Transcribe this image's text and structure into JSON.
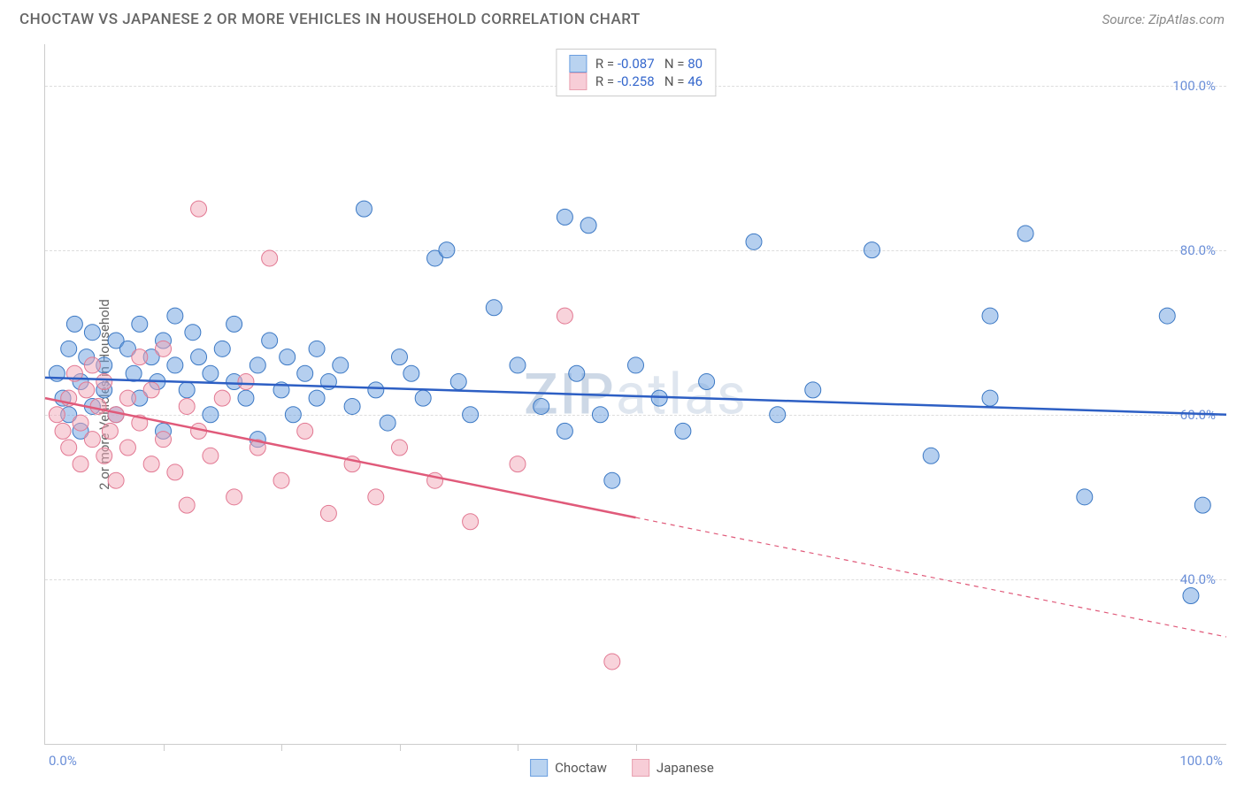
{
  "header": {
    "title": "CHOCTAW VS JAPANESE 2 OR MORE VEHICLES IN HOUSEHOLD CORRELATION CHART",
    "source": "Source: ZipAtlas.com"
  },
  "watermark": "ZIPatlas",
  "chart": {
    "type": "scatter",
    "ylabel": "2 or more Vehicles in Household",
    "xlim": [
      0,
      100
    ],
    "ylim": [
      20,
      105
    ],
    "xtick_label_left": "0.0%",
    "xtick_label_right": "100.0%",
    "xtick_positions": [
      10,
      20,
      30,
      40,
      50
    ],
    "ytick_positions": [
      40,
      60,
      80,
      100
    ],
    "ytick_labels": [
      "40.0%",
      "60.0%",
      "80.0%",
      "100.0%"
    ],
    "grid_color": "#dddddd",
    "background_color": "#ffffff",
    "marker_radius": 9,
    "marker_opacity": 0.5,
    "line_width": 2.5,
    "series": [
      {
        "name": "Choctaw",
        "color": "#6b9fe0",
        "stroke": "#3b78c4",
        "line_color": "#2d5fc4",
        "R": "-0.087",
        "N": "80",
        "regression": {
          "x1": 0,
          "y1": 64.5,
          "x2": 100,
          "y2": 60.0,
          "solid_until": 100
        },
        "points": [
          [
            1,
            65
          ],
          [
            1.5,
            62
          ],
          [
            2,
            68
          ],
          [
            2,
            60
          ],
          [
            2.5,
            71
          ],
          [
            3,
            64
          ],
          [
            3,
            58
          ],
          [
            3.5,
            67
          ],
          [
            4,
            61
          ],
          [
            4,
            70
          ],
          [
            5,
            63
          ],
          [
            5,
            66
          ],
          [
            6,
            69
          ],
          [
            6,
            60
          ],
          [
            7,
            68
          ],
          [
            7.5,
            65
          ],
          [
            8,
            71
          ],
          [
            8,
            62
          ],
          [
            9,
            67
          ],
          [
            9.5,
            64
          ],
          [
            10,
            69
          ],
          [
            10,
            58
          ],
          [
            11,
            66
          ],
          [
            11,
            72
          ],
          [
            12,
            63
          ],
          [
            12.5,
            70
          ],
          [
            13,
            67
          ],
          [
            14,
            65
          ],
          [
            14,
            60
          ],
          [
            15,
            68
          ],
          [
            16,
            64
          ],
          [
            16,
            71
          ],
          [
            17,
            62
          ],
          [
            18,
            66
          ],
          [
            18,
            57
          ],
          [
            19,
            69
          ],
          [
            20,
            63
          ],
          [
            20.5,
            67
          ],
          [
            21,
            60
          ],
          [
            22,
            65
          ],
          [
            23,
            62
          ],
          [
            23,
            68
          ],
          [
            24,
            64
          ],
          [
            25,
            66
          ],
          [
            26,
            61
          ],
          [
            27,
            85
          ],
          [
            28,
            63
          ],
          [
            29,
            59
          ],
          [
            30,
            67
          ],
          [
            31,
            65
          ],
          [
            32,
            62
          ],
          [
            33,
            79
          ],
          [
            34,
            80
          ],
          [
            35,
            64
          ],
          [
            36,
            60
          ],
          [
            38,
            73
          ],
          [
            40,
            66
          ],
          [
            42,
            61
          ],
          [
            44,
            84
          ],
          [
            44,
            58
          ],
          [
            45,
            65
          ],
          [
            46,
            83
          ],
          [
            47,
            60
          ],
          [
            48,
            52
          ],
          [
            50,
            66
          ],
          [
            52,
            62
          ],
          [
            54,
            58
          ],
          [
            56,
            64
          ],
          [
            60,
            81
          ],
          [
            62,
            60
          ],
          [
            65,
            63
          ],
          [
            70,
            80
          ],
          [
            75,
            55
          ],
          [
            80,
            72
          ],
          [
            83,
            82
          ],
          [
            88,
            50
          ],
          [
            95,
            72
          ],
          [
            97,
            38
          ],
          [
            98,
            49
          ],
          [
            80,
            62
          ]
        ]
      },
      {
        "name": "Japanese",
        "color": "#f2a8b8",
        "stroke": "#e27892",
        "line_color": "#e05a7a",
        "R": "-0.258",
        "N": "46",
        "regression": {
          "x1": 0,
          "y1": 62.0,
          "x2": 100,
          "y2": 33.0,
          "solid_until": 50
        },
        "points": [
          [
            1,
            60
          ],
          [
            1.5,
            58
          ],
          [
            2,
            62
          ],
          [
            2,
            56
          ],
          [
            2.5,
            65
          ],
          [
            3,
            59
          ],
          [
            3,
            54
          ],
          [
            3.5,
            63
          ],
          [
            4,
            57
          ],
          [
            4,
            66
          ],
          [
            4.5,
            61
          ],
          [
            5,
            55
          ],
          [
            5,
            64
          ],
          [
            5.5,
            58
          ],
          [
            6,
            60
          ],
          [
            6,
            52
          ],
          [
            7,
            62
          ],
          [
            7,
            56
          ],
          [
            8,
            59
          ],
          [
            8,
            67
          ],
          [
            9,
            54
          ],
          [
            9,
            63
          ],
          [
            10,
            57
          ],
          [
            10,
            68
          ],
          [
            11,
            53
          ],
          [
            12,
            61
          ],
          [
            12,
            49
          ],
          [
            13,
            58
          ],
          [
            13,
            85
          ],
          [
            14,
            55
          ],
          [
            15,
            62
          ],
          [
            16,
            50
          ],
          [
            17,
            64
          ],
          [
            18,
            56
          ],
          [
            19,
            79
          ],
          [
            20,
            52
          ],
          [
            22,
            58
          ],
          [
            24,
            48
          ],
          [
            26,
            54
          ],
          [
            28,
            50
          ],
          [
            30,
            56
          ],
          [
            33,
            52
          ],
          [
            36,
            47
          ],
          [
            40,
            54
          ],
          [
            44,
            72
          ],
          [
            48,
            30
          ]
        ]
      }
    ],
    "bottom_legend": [
      {
        "label": "Choctaw",
        "fill": "#b9d3f0",
        "border": "#6b9fe0"
      },
      {
        "label": "Japanese",
        "fill": "#f7cdd7",
        "border": "#e8a0b0"
      }
    ],
    "stat_legend": [
      {
        "fill": "#b9d3f0",
        "border": "#6b9fe0",
        "R": "-0.087",
        "N": "80"
      },
      {
        "fill": "#f7cdd7",
        "border": "#e8a0b0",
        "R": "-0.258",
        "N": "46"
      }
    ]
  }
}
